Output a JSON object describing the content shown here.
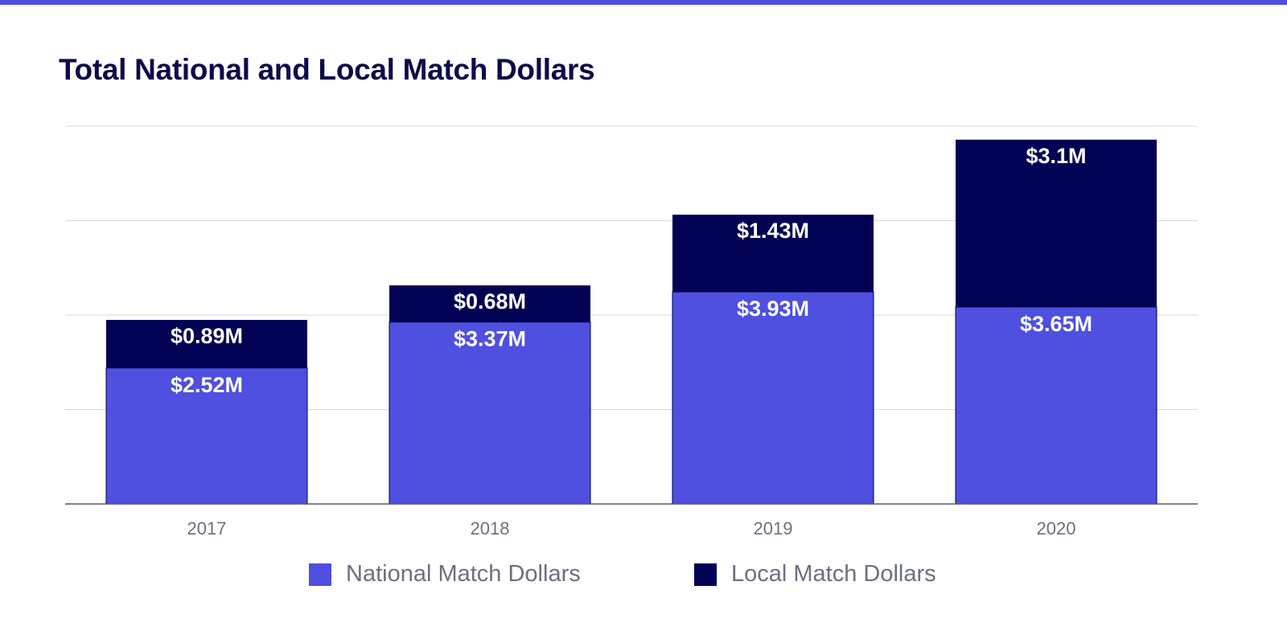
{
  "colors": {
    "accent_bar": "#4f4fe0",
    "national": "#4f4fe0",
    "local": "#020254",
    "title": "#0b0b4a",
    "axis_text": "#6b7080",
    "grid": "#d9d9de",
    "bar_label": "#ffffff"
  },
  "chart_data": {
    "type": "bar",
    "stacked": true,
    "title": "Total National and Local Match Dollars",
    "xlabel": "",
    "ylabel": "",
    "categories": [
      "2017",
      "2018",
      "2019",
      "2020"
    ],
    "series": [
      {
        "name": "National Match Dollars",
        "values": [
          2.52,
          3.37,
          3.93,
          3.65
        ],
        "labels": [
          "$2.52M",
          "$3.37M",
          "$3.93M",
          "$3.65M"
        ]
      },
      {
        "name": "Local Match Dollars",
        "values": [
          0.89,
          0.68,
          1.43,
          3.1
        ],
        "labels": [
          "$0.89M",
          "$0.68M",
          "$1.43M",
          "$3.1M"
        ]
      }
    ],
    "ylim": [
      0,
      7
    ],
    "grid": true,
    "legend": "bottom-center",
    "units": "$M"
  },
  "legend": {
    "national_label": "National Match Dollars",
    "local_label": "Local Match Dollars"
  }
}
